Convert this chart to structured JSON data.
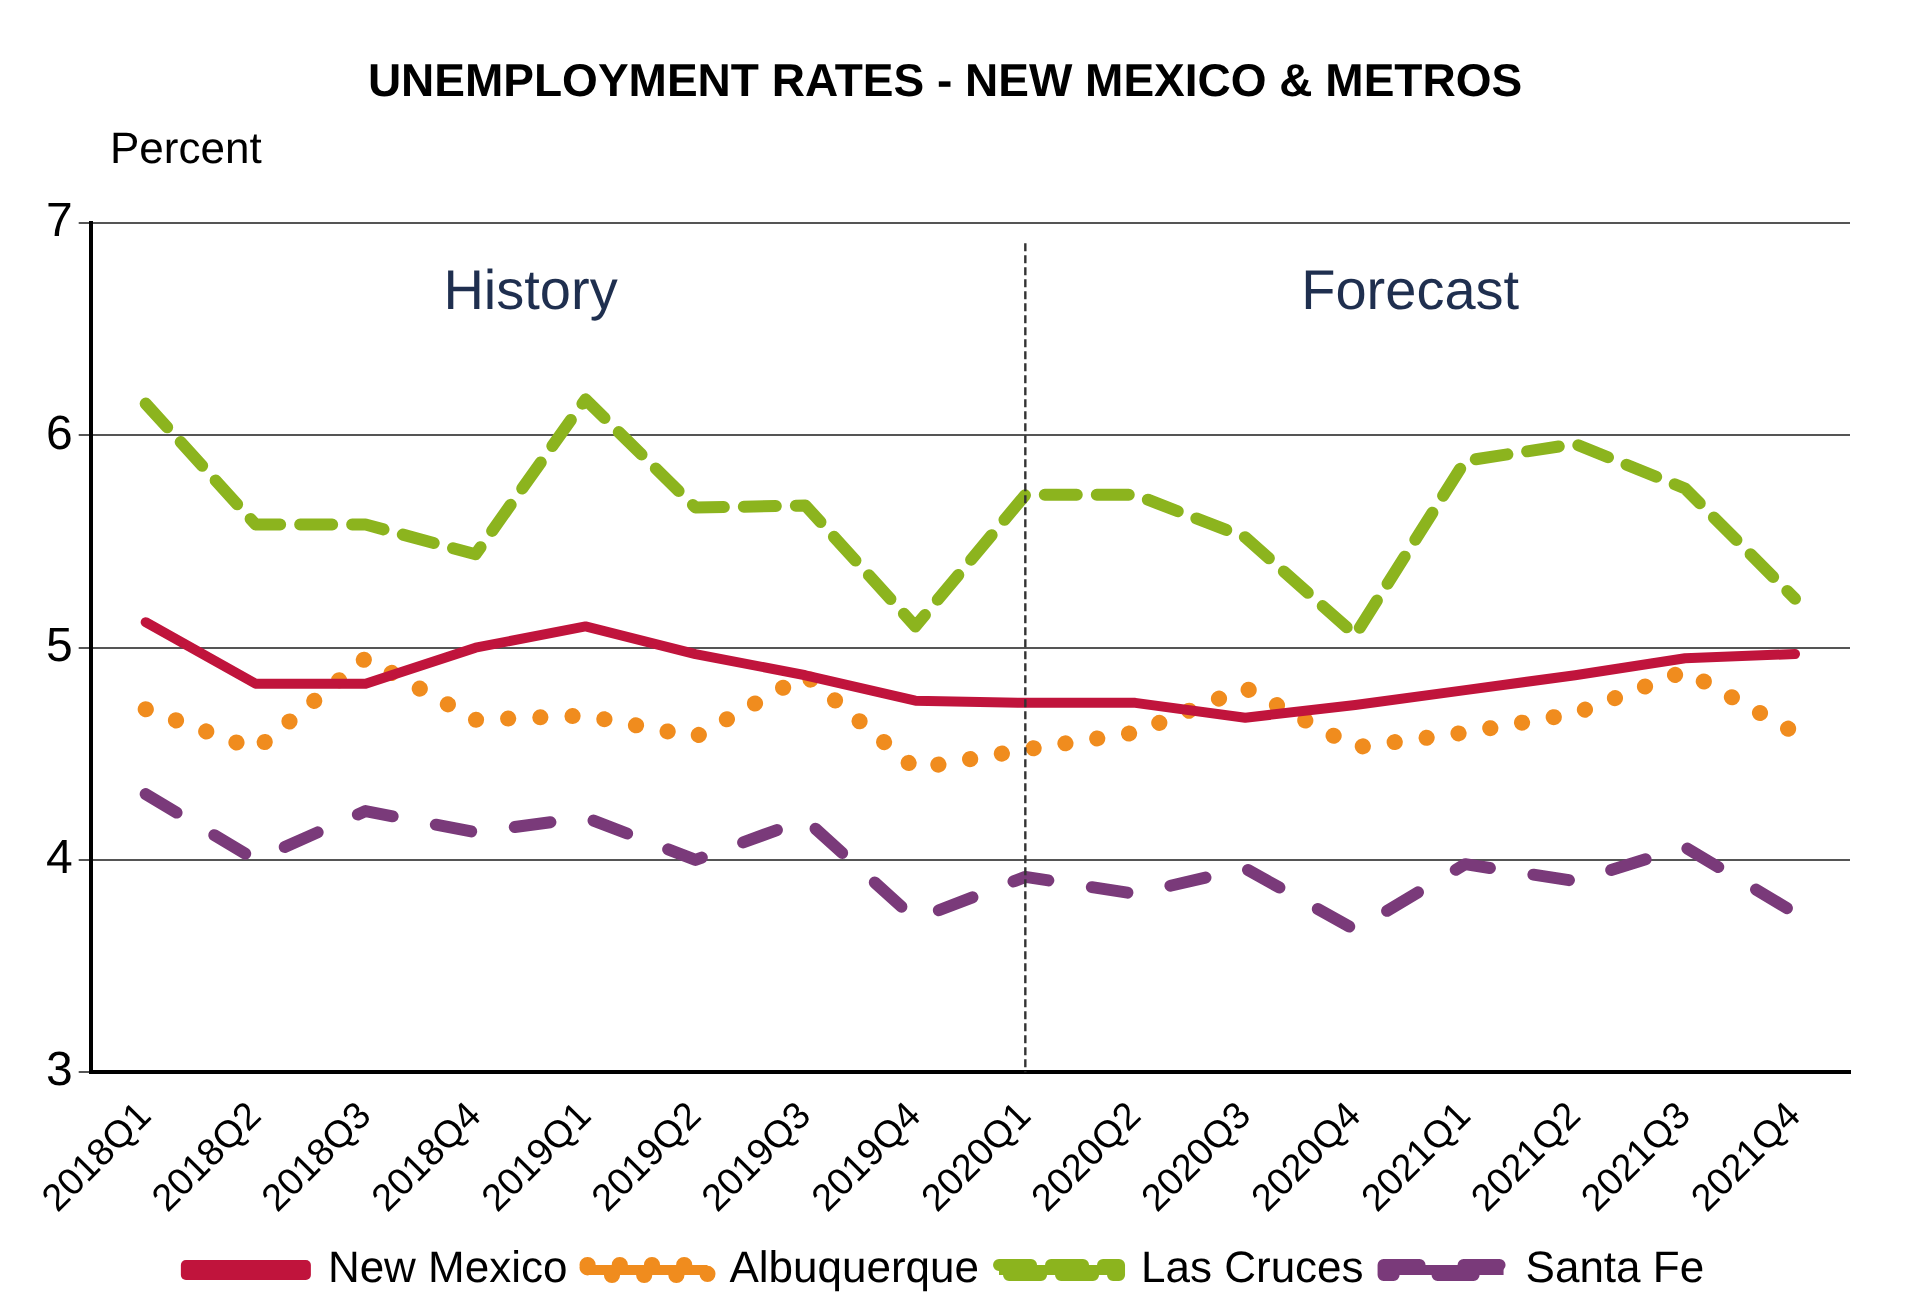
{
  "chart_data": {
    "type": "line",
    "title": "UNEMPLOYMENT RATES - NEW MEXICO & METROS",
    "ylabel": "Percent",
    "categories": [
      "2018Q1",
      "2018Q2",
      "2018Q3",
      "2018Q4",
      "2019Q1",
      "2019Q2",
      "2019Q3",
      "2019Q4",
      "2020Q1",
      "2020Q2",
      "2020Q3",
      "2020Q4",
      "2021Q1",
      "2021Q2",
      "2021Q3",
      "2021Q4"
    ],
    "series": [
      {
        "name": "New Mexico",
        "color": "#c0143c",
        "line_style": "solid",
        "values": [
          5.12,
          4.83,
          4.83,
          5.0,
          5.1,
          4.97,
          4.87,
          4.75,
          4.74,
          4.74,
          4.67,
          4.73,
          4.8,
          4.87,
          4.95,
          4.97
        ]
      },
      {
        "name": "Albuquerque",
        "color": "#f08c1e",
        "line_style": "dotted",
        "values": [
          4.71,
          4.52,
          4.95,
          4.66,
          4.68,
          4.58,
          4.87,
          4.43,
          4.52,
          4.6,
          4.81,
          4.53,
          4.6,
          4.69,
          4.89,
          4.6
        ]
      },
      {
        "name": "Las Cruces",
        "color": "#8cb41e",
        "line_style": "dashed",
        "values": [
          6.15,
          5.58,
          5.58,
          5.44,
          6.17,
          5.66,
          5.67,
          5.1,
          5.72,
          5.72,
          5.52,
          5.06,
          5.88,
          5.96,
          5.75,
          5.23
        ]
      },
      {
        "name": "Santa Fe",
        "color": "#7a3a7a",
        "line_style": "dashed",
        "values": [
          4.31,
          4.0,
          4.23,
          4.13,
          4.2,
          4.0,
          4.19,
          3.72,
          3.92,
          3.84,
          3.96,
          3.67,
          3.98,
          3.9,
          4.06,
          3.75
        ]
      }
    ],
    "ylim": [
      3,
      7
    ],
    "yticks": [
      3,
      4,
      5,
      6,
      7
    ],
    "grid": "y",
    "legend": "bottom",
    "marker": "none",
    "ref_lines": [
      {
        "axis": "x",
        "value": "2020Q1",
        "line_style": "dashed",
        "color": "#333333"
      }
    ],
    "annotations": [
      "History",
      "Forecast"
    ]
  }
}
